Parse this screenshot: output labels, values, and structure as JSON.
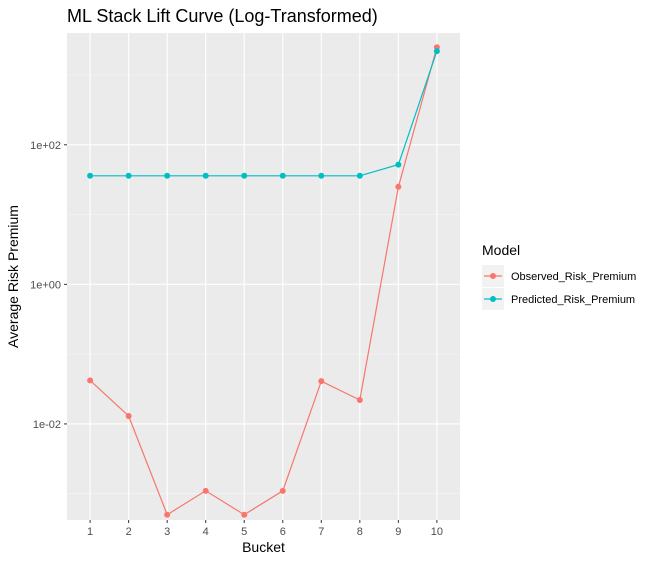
{
  "chart_data": {
    "type": "line",
    "title": "ML Stack Lift Curve (Log-Transformed)",
    "xlabel": "Bucket",
    "ylabel": "Average Risk Premium",
    "y_scale": "log10",
    "x_ticks": [
      "1",
      "2",
      "3",
      "4",
      "5",
      "6",
      "7",
      "8",
      "9",
      "10"
    ],
    "y_ticks": [
      {
        "value": 0.01,
        "label": "1e-02"
      },
      {
        "value": 1,
        "label": "1e+00"
      },
      {
        "value": 100,
        "label": "1e+02"
      }
    ],
    "ylim": [
      0.00042,
      4000
    ],
    "xlim": [
      0.4,
      10.6
    ],
    "grid": true,
    "legend": {
      "title": "Model",
      "position": "right"
    },
    "x": [
      1,
      2,
      3,
      4,
      5,
      6,
      7,
      8,
      9,
      10
    ],
    "series": [
      {
        "name": "Observed_Risk_Premium",
        "color": "#F8766D",
        "values": [
          0.042,
          0.013,
          0.0005,
          0.0011,
          0.0005,
          0.0011,
          0.041,
          0.022,
          25,
          2500
        ]
      },
      {
        "name": "Predicted_Risk_Premium",
        "color": "#00BFC4",
        "values": [
          36,
          36,
          36,
          36,
          36,
          36,
          36,
          36,
          52,
          2200
        ]
      }
    ]
  }
}
